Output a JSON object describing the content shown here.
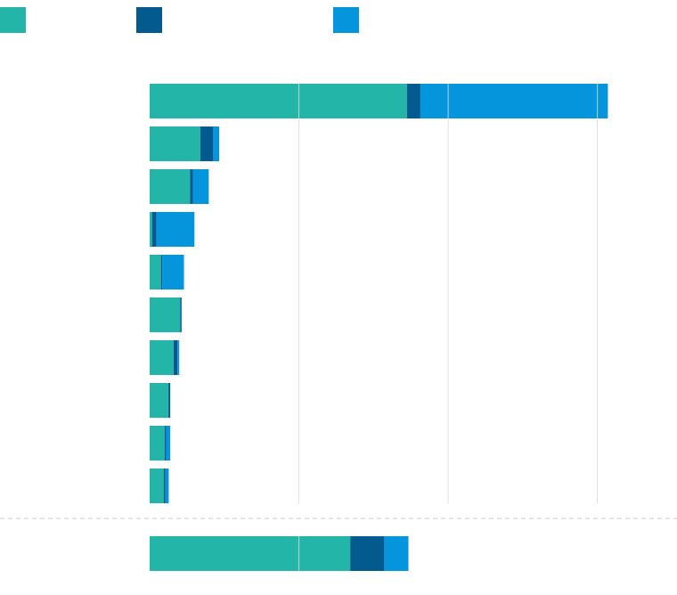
{
  "chart_data": {
    "type": "bar",
    "orientation": "horizontal",
    "stacked": true,
    "title": "",
    "xlabel": "",
    "ylabel": "",
    "legend_placement": "top-left",
    "grid": true,
    "xlim": [
      0,
      1710
    ],
    "gridlines": [
      500,
      1000,
      1500
    ],
    "categories": [
      "",
      "",
      "",
      "",
      "",
      "",
      "",
      "",
      "",
      ""
    ],
    "series": [
      {
        "color": "#22b5a8",
        "values": [
          862,
          170,
          135,
          8,
          38,
          103,
          80,
          63,
          50,
          47
        ]
      },
      {
        "color": "#035a8f",
        "values": [
          45,
          43,
          10,
          15,
          4,
          4,
          13,
          6,
          5,
          6
        ]
      },
      {
        "color": "#0495dc",
        "values": [
          628,
          20,
          53,
          127,
          73,
          0,
          6,
          0,
          14,
          11
        ]
      }
    ],
    "total": {
      "values": [
        672,
        114,
        81
      ]
    },
    "colors": {
      "grid": "#d8dcdc",
      "divider": "#c8cccc"
    }
  }
}
